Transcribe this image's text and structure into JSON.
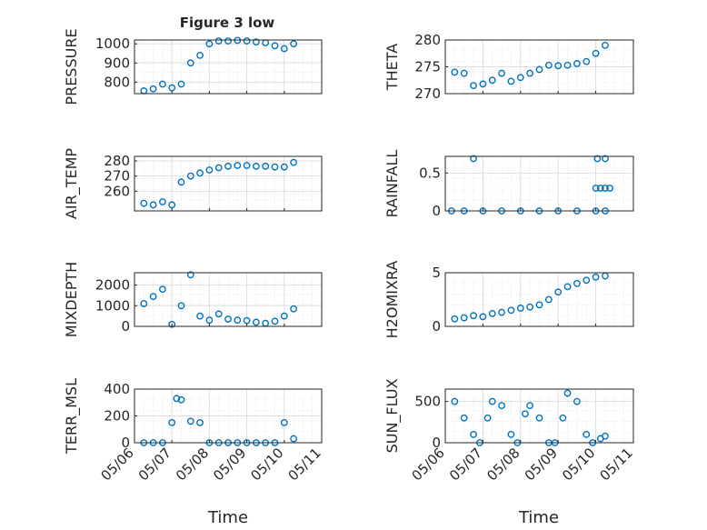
{
  "figure": {
    "title": "Figure 3 low",
    "xlabel": "Time",
    "x_tick_labels": [
      "05/06",
      "05/07",
      "05/08",
      "05/09",
      "05/10",
      "05/11"
    ]
  },
  "colors": {
    "marker": "#0072BD",
    "grid": "#DFDFDF",
    "axis": "#262626",
    "background": "#FFFFFF"
  },
  "chart_data": [
    {
      "type": "scatter",
      "ylabel": "PRESSURE",
      "title": "Figure 3 low",
      "xlim": [
        "05/06",
        "05/11"
      ],
      "ylim": [
        740,
        1020
      ],
      "yticks": [
        800,
        900,
        1000
      ],
      "grid": true,
      "x": [
        "05/06 06:00",
        "05/06 12:00",
        "05/06 18:00",
        "05/07 00:00",
        "05/07 06:00",
        "05/07 12:00",
        "05/07 18:00",
        "05/08 00:00",
        "05/08 06:00",
        "05/08 12:00",
        "05/08 18:00",
        "05/09 00:00",
        "05/09 06:00",
        "05/09 12:00",
        "05/09 18:00",
        "05/10 00:00",
        "05/10 06:00"
      ],
      "y": [
        755,
        765,
        790,
        770,
        790,
        900,
        940,
        1000,
        1015,
        1015,
        1018,
        1015,
        1010,
        1005,
        990,
        975,
        1000
      ]
    },
    {
      "type": "scatter",
      "ylabel": "THETA",
      "xlim": [
        "05/06",
        "05/11"
      ],
      "ylim": [
        270,
        280
      ],
      "yticks": [
        270,
        275,
        280
      ],
      "grid": true,
      "x": [
        "05/06 06:00",
        "05/06 12:00",
        "05/06 18:00",
        "05/07 00:00",
        "05/07 06:00",
        "05/07 12:00",
        "05/07 18:00",
        "05/08 00:00",
        "05/08 06:00",
        "05/08 12:00",
        "05/08 18:00",
        "05/09 00:00",
        "05/09 06:00",
        "05/09 12:00",
        "05/09 18:00",
        "05/10 00:00",
        "05/10 06:00"
      ],
      "y": [
        274,
        273.8,
        271.5,
        271.8,
        272.5,
        273.8,
        272.3,
        273,
        273.8,
        274.5,
        275.3,
        275.2,
        275.3,
        275.6,
        276,
        277.5,
        279
      ]
    },
    {
      "type": "scatter",
      "ylabel": "AIR_TEMP",
      "xlim": [
        "05/06",
        "05/11"
      ],
      "ylim": [
        247,
        283
      ],
      "yticks": [
        260,
        270,
        280
      ],
      "grid": true,
      "x": [
        "05/06 06:00",
        "05/06 12:00",
        "05/06 18:00",
        "05/07 00:00",
        "05/07 06:00",
        "05/07 12:00",
        "05/07 18:00",
        "05/08 00:00",
        "05/08 06:00",
        "05/08 12:00",
        "05/08 18:00",
        "05/09 00:00",
        "05/09 06:00",
        "05/09 12:00",
        "05/09 18:00",
        "05/10 00:00",
        "05/10 06:00"
      ],
      "y": [
        252,
        251,
        253,
        251,
        266,
        270,
        272,
        274,
        275.5,
        276.5,
        277,
        277,
        276.5,
        276.5,
        276,
        276,
        279
      ]
    },
    {
      "type": "scatter",
      "ylabel": "RAINFALL",
      "xlim": [
        "05/06",
        "05/11"
      ],
      "ylim": [
        0,
        0.72
      ],
      "yticks": [
        0,
        0.5
      ],
      "grid": true,
      "x": [
        "05/06 04:00",
        "05/06 12:00",
        "05/06 18:00",
        "05/07 00:00",
        "05/07 12:00",
        "05/08 00:00",
        "05/08 12:00",
        "05/09 00:00",
        "05/09 12:00",
        "05/10 00:00",
        "05/10 06:00",
        "05/10 00:00",
        "05/10 03:00",
        "05/10 06:00",
        "05/10 09:00",
        "05/10 01:00",
        "05/10 06:00"
      ],
      "y": [
        0,
        0,
        0.69,
        0,
        0,
        0,
        0,
        0,
        0,
        0,
        0,
        0.3,
        0.3,
        0.3,
        0.3,
        0.69,
        0.69
      ]
    },
    {
      "type": "scatter",
      "ylabel": "MIXDEPTH",
      "xlim": [
        "05/06",
        "05/11"
      ],
      "ylim": [
        0,
        2600
      ],
      "yticks": [
        0,
        1000,
        2000
      ],
      "grid": true,
      "x": [
        "05/06 06:00",
        "05/06 12:00",
        "05/06 18:00",
        "05/07 00:00",
        "05/07 06:00",
        "05/07 12:00",
        "05/07 18:00",
        "05/08 00:00",
        "05/08 06:00",
        "05/08 12:00",
        "05/08 18:00",
        "05/09 00:00",
        "05/09 06:00",
        "05/09 12:00",
        "05/09 18:00",
        "05/10 00:00",
        "05/10 06:00"
      ],
      "y": [
        1100,
        1450,
        1800,
        100,
        1000,
        2500,
        500,
        300,
        600,
        350,
        300,
        280,
        200,
        150,
        250,
        500,
        850
      ]
    },
    {
      "type": "scatter",
      "ylabel": "H2OMIXRA",
      "xlim": [
        "05/06",
        "05/11"
      ],
      "ylim": [
        0,
        5
      ],
      "yticks": [
        0,
        5
      ],
      "grid": true,
      "x": [
        "05/06 06:00",
        "05/06 12:00",
        "05/06 18:00",
        "05/07 00:00",
        "05/07 06:00",
        "05/07 12:00",
        "05/07 18:00",
        "05/08 00:00",
        "05/08 06:00",
        "05/08 12:00",
        "05/08 18:00",
        "05/09 00:00",
        "05/09 06:00",
        "05/09 12:00",
        "05/09 18:00",
        "05/10 00:00",
        "05/10 06:00"
      ],
      "y": [
        0.7,
        0.8,
        1.0,
        0.9,
        1.2,
        1.3,
        1.5,
        1.7,
        1.8,
        2.0,
        2.5,
        3.2,
        3.7,
        4.0,
        4.3,
        4.6,
        4.7
      ]
    },
    {
      "type": "scatter",
      "ylabel": "TERR_MSL",
      "xlim": [
        "05/06",
        "05/11"
      ],
      "ylim": [
        0,
        400
      ],
      "yticks": [
        0,
        200,
        400
      ],
      "grid": true,
      "x": [
        "05/06 06:00",
        "05/06 12:00",
        "05/06 18:00",
        "05/07 00:00",
        "05/07 03:00",
        "05/07 06:00",
        "05/07 12:00",
        "05/07 18:00",
        "05/08 00:00",
        "05/08 06:00",
        "05/08 12:00",
        "05/08 18:00",
        "05/09 00:00",
        "05/09 06:00",
        "05/09 12:00",
        "05/09 18:00",
        "05/10 00:00",
        "05/10 06:00"
      ],
      "y": [
        0,
        0,
        0,
        150,
        330,
        320,
        160,
        150,
        0,
        0,
        0,
        0,
        0,
        0,
        0,
        0,
        150,
        30
      ]
    },
    {
      "type": "scatter",
      "ylabel": "SUN_FLUX",
      "xlim": [
        "05/06",
        "05/11"
      ],
      "ylim": [
        0,
        650
      ],
      "yticks": [
        0,
        500
      ],
      "grid": true,
      "x": [
        "05/06 06:00",
        "05/06 12:00",
        "05/06 18:00",
        "05/06 22:00",
        "05/07 03:00",
        "05/07 06:00",
        "05/07 12:00",
        "05/07 18:00",
        "05/07 22:00",
        "05/08 03:00",
        "05/08 06:00",
        "05/08 12:00",
        "05/08 18:00",
        "05/08 22:00",
        "05/09 03:00",
        "05/09 06:00",
        "05/09 12:00",
        "05/09 18:00",
        "05/09 22:00",
        "05/10 03:00",
        "05/10 06:00"
      ],
      "y": [
        500,
        300,
        100,
        0,
        300,
        500,
        450,
        100,
        0,
        350,
        450,
        300,
        0,
        0,
        300,
        600,
        500,
        100,
        0,
        50,
        80
      ]
    }
  ]
}
